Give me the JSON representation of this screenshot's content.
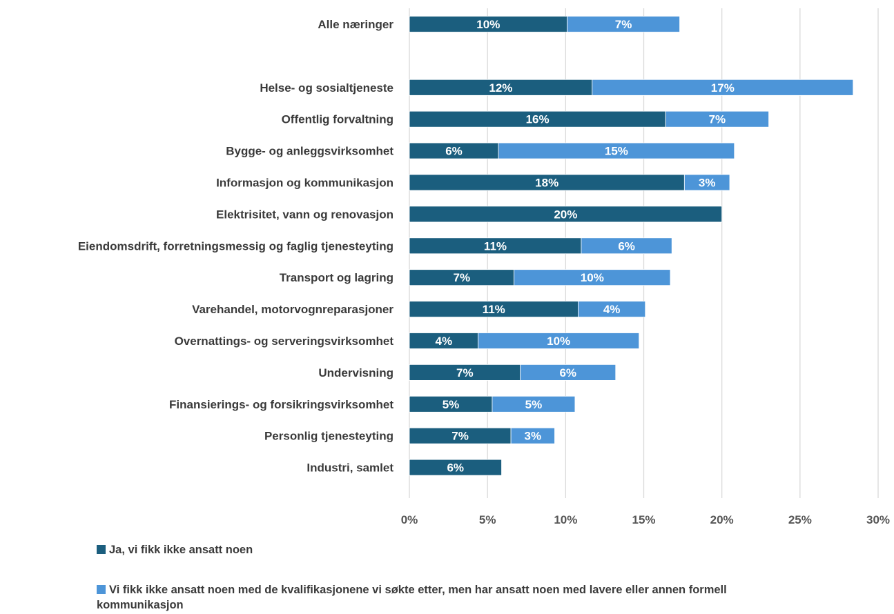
{
  "chart_data": {
    "type": "bar",
    "orientation": "horizontal",
    "stacked": true,
    "categories": [
      "Alle næringer",
      "",
      "Helse- og sosialtjeneste",
      "Offentlig forvaltning",
      "Bygge- og anleggsvirksomhet",
      "Informasjon og kommunikasjon",
      "Elektrisitet, vann og renovasjon",
      "Eiendomsdrift, forretningsmessig og faglig tjenesteyting",
      "Transport og lagring",
      "Varehandel, motorvognreparasjoner",
      "Overnattings- og serveringsvirksomhet",
      "Undervisning",
      "Finansierings- og forsikringsvirksomhet",
      "Personlig tjenesteyting",
      "Industri, samlet"
    ],
    "series": [
      {
        "name": "Ja, vi fikk ikke ansatt noen",
        "color": "#1b5e7e",
        "values": [
          10.1,
          null,
          11.7,
          16.4,
          5.7,
          17.6,
          20.0,
          11.0,
          6.7,
          10.8,
          4.4,
          7.1,
          5.3,
          6.5,
          5.9
        ],
        "labels": [
          "10%",
          "",
          "12%",
          "16%",
          "6%",
          "18%",
          "20%",
          "11%",
          "7%",
          "11%",
          "4%",
          "7%",
          "5%",
          "7%",
          "6%"
        ]
      },
      {
        "name": "Vi fikk ikke ansatt noen med de kvalifikasjonene vi søkte etter, men har ansatt noen med lavere eller annen formell kommunikasjon",
        "color": "#4d95d8",
        "values": [
          7.2,
          null,
          16.7,
          6.6,
          15.1,
          2.9,
          0,
          5.8,
          10.0,
          4.3,
          10.3,
          6.1,
          5.3,
          2.8,
          0
        ],
        "labels": [
          "7%",
          "",
          "17%",
          "7%",
          "15%",
          "3%",
          "",
          "6%",
          "10%",
          "4%",
          "10%",
          "6%",
          "5%",
          "3%",
          ""
        ]
      }
    ],
    "xlim": [
      0,
      30
    ],
    "xticks": [
      0,
      5,
      10,
      15,
      20,
      25,
      30
    ],
    "xtick_labels": [
      "0%",
      "5%",
      "10%",
      "15%",
      "20%",
      "25%",
      "30%"
    ],
    "grid": true,
    "legend_position": "bottom-left"
  }
}
